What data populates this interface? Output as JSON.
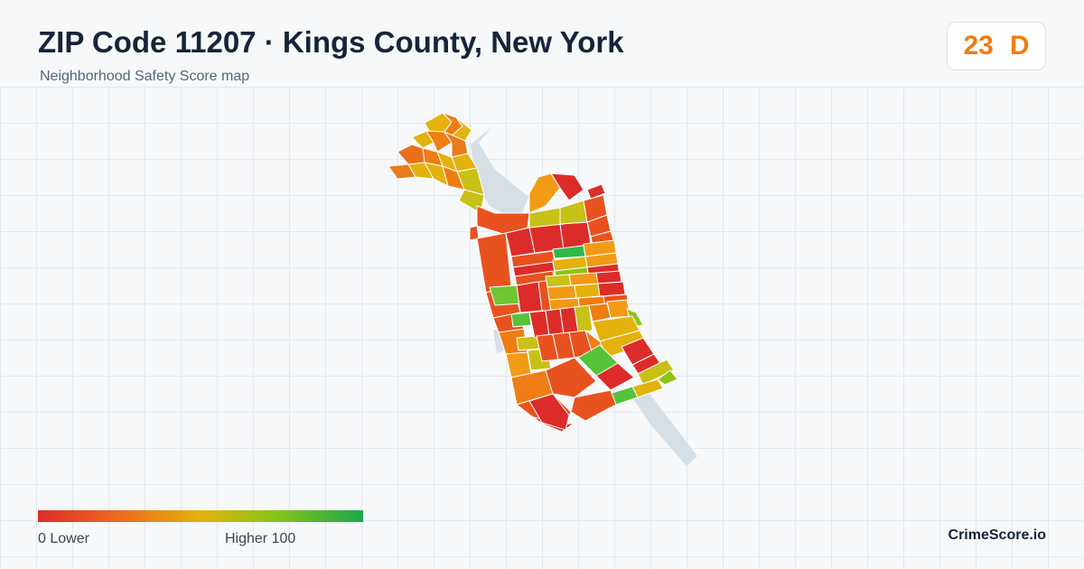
{
  "header": {
    "title": "ZIP Code 11207 · Kings County, New York",
    "subtitle": "Neighborhood Safety Score map"
  },
  "score": {
    "value": "23",
    "grade": "D",
    "color": "#ef7d14"
  },
  "legend": {
    "low_label": "0  Lower",
    "high_label": "Higher  100",
    "colors": [
      "#dc2c2a",
      "#ee6a1d",
      "#e3b20c",
      "#8cc418",
      "#1ca84c"
    ]
  },
  "brand": "CrimeScore.io",
  "map": {
    "park_color": "#d6dfe6",
    "outline_color": "#ffffff"
  }
}
